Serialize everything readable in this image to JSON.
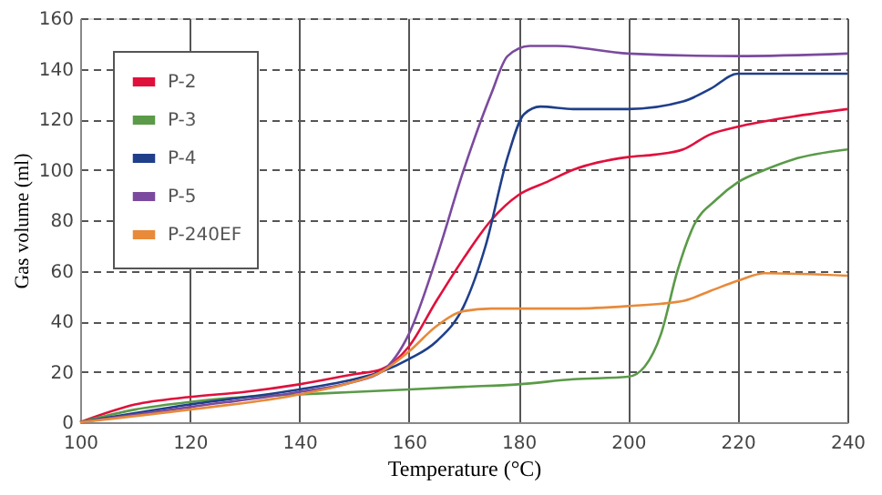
{
  "chart_data": {
    "type": "line",
    "xlabel": "Temperature (°C)",
    "ylabel": "Gas volume (ml)",
    "xlim": [
      100,
      240
    ],
    "xticks": [
      100,
      120,
      140,
      160,
      180,
      200,
      220,
      240
    ],
    "ylim": [
      0,
      160
    ],
    "yticks": [
      0,
      20,
      40,
      60,
      80,
      100,
      120,
      140,
      160
    ],
    "grid": true,
    "legend": "top left",
    "marker": "none",
    "line_style": "solid",
    "series": [
      {
        "name": "P-2",
        "color": "#e0103c",
        "x": [
          100,
          110,
          120,
          130,
          140,
          150,
          155,
          160,
          165,
          170,
          175,
          180,
          185,
          190,
          200,
          205,
          210,
          215,
          220,
          230,
          240
        ],
        "values": [
          0,
          7,
          10,
          12,
          15,
          19,
          21,
          30,
          48,
          65,
          80,
          90,
          95,
          100,
          105,
          106,
          108,
          114,
          117,
          121,
          124
        ]
      },
      {
        "name": "P-3",
        "color": "#5a9a48",
        "x": [
          100,
          110,
          120,
          130,
          140,
          150,
          160,
          170,
          180,
          190,
          200,
          203,
          206,
          209,
          212,
          216,
          220,
          225,
          230,
          240
        ],
        "values": [
          0,
          5,
          8,
          10,
          11,
          12,
          13,
          14,
          15,
          17,
          18,
          22,
          35,
          60,
          78,
          88,
          95,
          100,
          104,
          108
        ]
      },
      {
        "name": "P-4",
        "color": "#1f3f8a",
        "x": [
          100,
          120,
          140,
          150,
          155,
          160,
          165,
          170,
          174,
          178,
          181,
          184,
          190,
          200,
          210,
          215,
          220,
          230,
          240
        ],
        "values": [
          0,
          7,
          13,
          17,
          20,
          25,
          32,
          46,
          70,
          105,
          122,
          125,
          124,
          124,
          127,
          132,
          138,
          138,
          138
        ]
      },
      {
        "name": "P-5",
        "color": "#7b4a9e",
        "x": [
          100,
          120,
          140,
          150,
          155,
          160,
          165,
          170,
          175,
          178,
          182,
          187,
          200,
          220,
          240
        ],
        "values": [
          0,
          6,
          12,
          16,
          20,
          35,
          65,
          100,
          130,
          145,
          149,
          149,
          146,
          145,
          146
        ]
      },
      {
        "name": "P-240EF",
        "color": "#e88a3a",
        "x": [
          100,
          120,
          140,
          150,
          155,
          160,
          165,
          170,
          175,
          190,
          200,
          210,
          215,
          220,
          225,
          240
        ],
        "values": [
          0,
          5,
          11,
          16,
          20,
          28,
          38,
          44,
          45,
          45,
          46,
          48,
          52,
          56,
          59,
          58
        ]
      }
    ]
  }
}
